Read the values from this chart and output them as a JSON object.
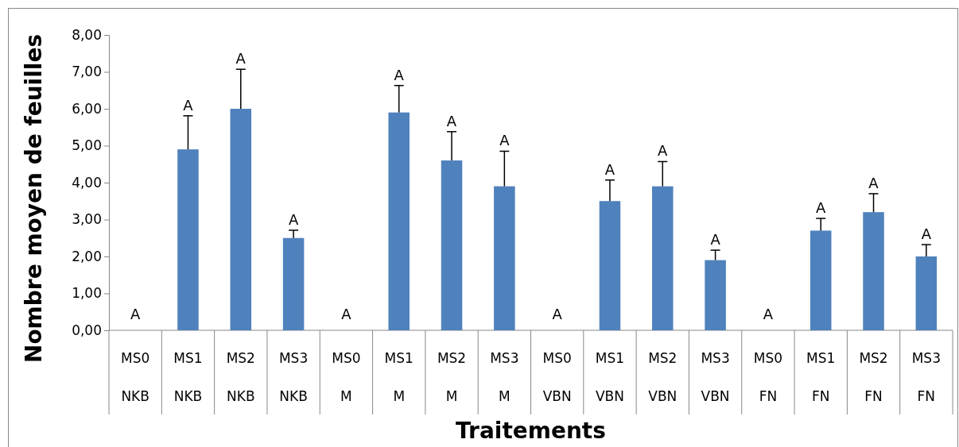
{
  "chart_data": {
    "type": "bar",
    "xlabel": "Traitements",
    "ylabel": "Nombre moyen de feuilles",
    "categories": [
      "MS0\nNKB",
      "MS1\nNKB",
      "MS2\nNKB",
      "MS3\nNKB",
      "MS0\nM",
      "MS1\nM",
      "MS2\nM",
      "MS3\nM",
      "MS0\nVBN",
      "MS1\nVBN",
      "MS2\nVBN",
      "MS3\nVBN",
      "MS0\nFN",
      "MS1\nFN",
      "MS2\nFN",
      "MS3\nFN"
    ],
    "values": [
      0,
      4.9,
      6.0,
      2.5,
      0,
      5.9,
      4.6,
      3.9,
      0,
      3.5,
      3.9,
      1.9,
      0,
      2.7,
      3.2,
      2.0
    ],
    "errors": [
      null,
      [
        4.9,
        5.81
      ],
      [
        6.0,
        7.07
      ],
      [
        2.5,
        2.71
      ],
      null,
      [
        5.9,
        6.63
      ],
      [
        4.6,
        5.38
      ],
      [
        3.9,
        4.85
      ],
      null,
      [
        3.5,
        4.07
      ],
      [
        3.9,
        4.57
      ],
      [
        1.9,
        2.17
      ],
      null,
      [
        2.7,
        3.03
      ],
      [
        3.2,
        3.7
      ],
      [
        2.0,
        2.32
      ]
    ],
    "value_labels": [
      "A",
      "A",
      "A",
      "A",
      "A",
      "A",
      "A",
      "A",
      "A",
      "A",
      "A",
      "A",
      "A",
      "A",
      "A",
      "A"
    ],
    "color": "#4f81bd",
    "ylim": [
      0,
      8
    ],
    "yticks": [
      {
        "value": 0,
        "label": "0,00"
      },
      {
        "value": 1,
        "label": "1,00"
      },
      {
        "value": 2,
        "label": "2,00"
      },
      {
        "value": 3,
        "label": "3,00"
      },
      {
        "value": 4,
        "label": "4,00"
      },
      {
        "value": 5,
        "label": "5,00"
      },
      {
        "value": 6,
        "label": "6,00"
      },
      {
        "value": 7,
        "label": "7,00"
      },
      {
        "value": 8,
        "label": "8,00"
      }
    ]
  }
}
